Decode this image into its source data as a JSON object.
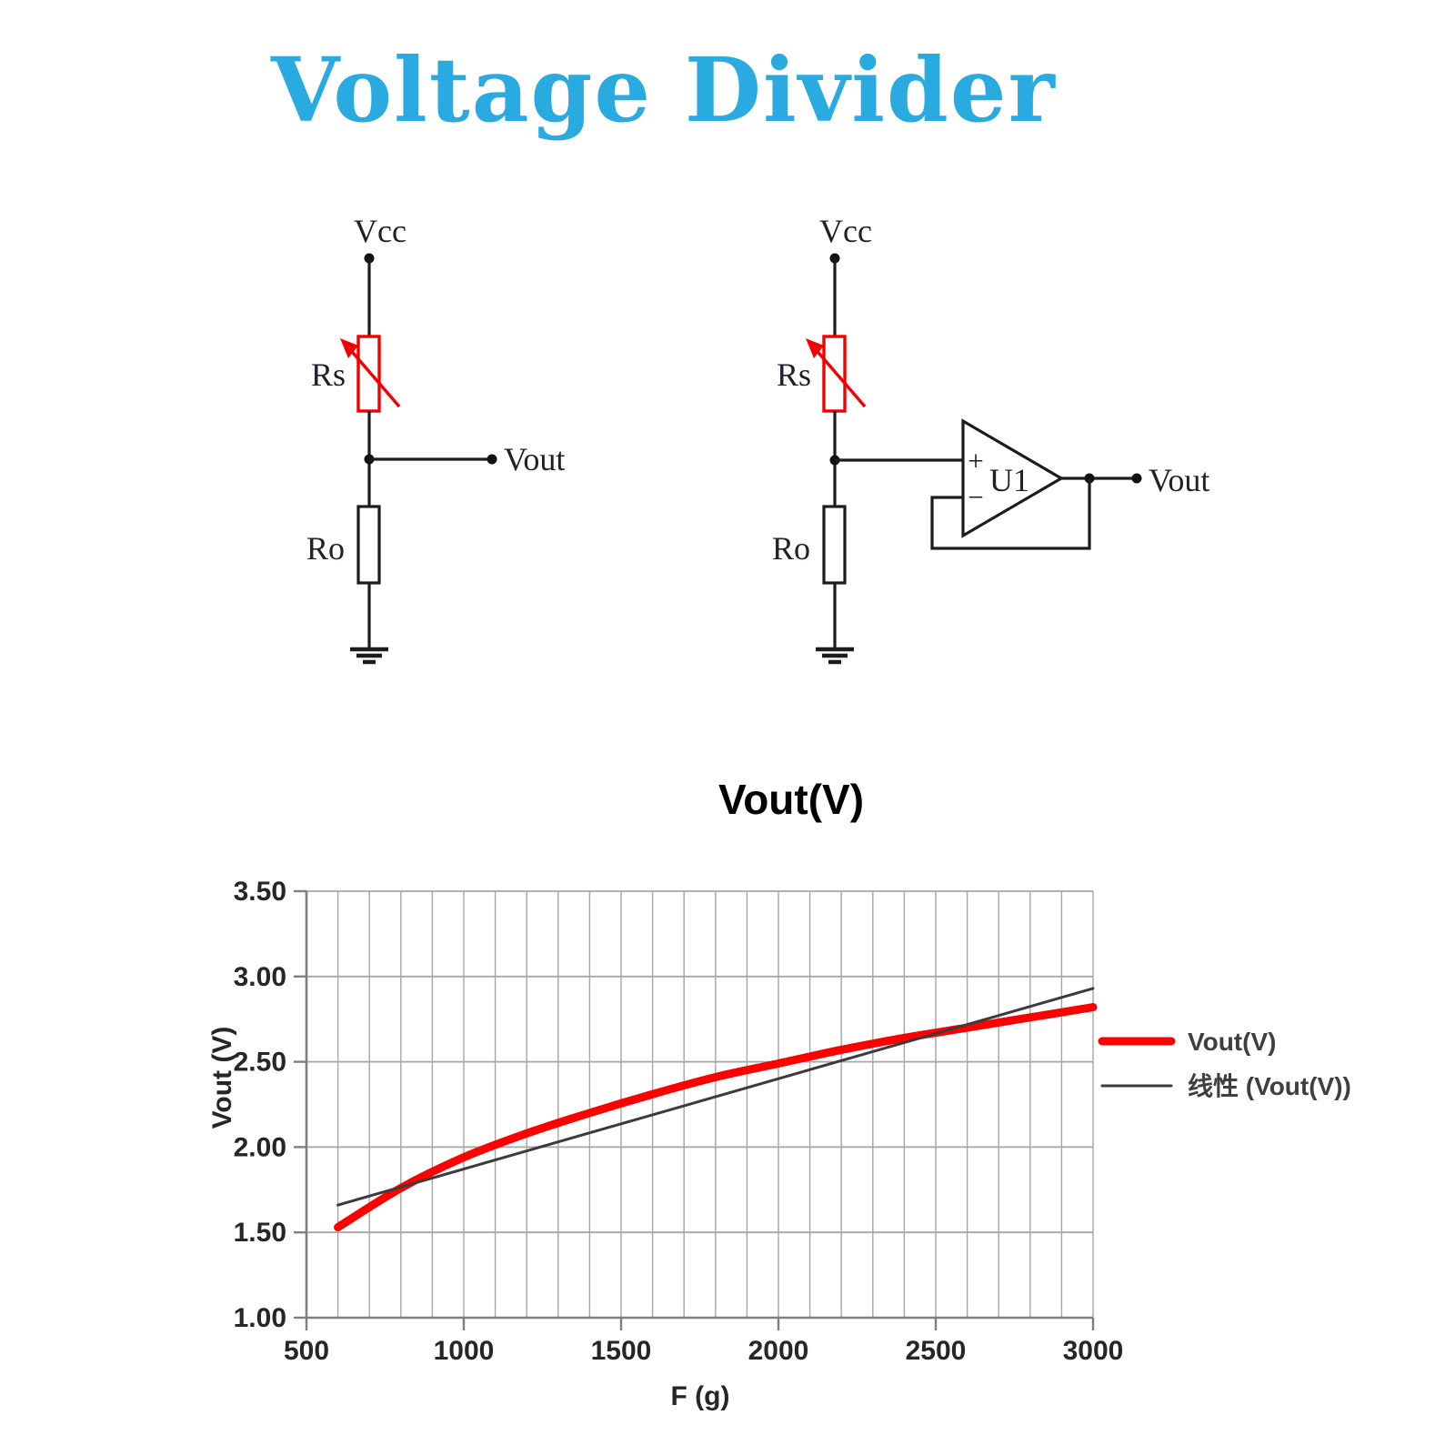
{
  "page": {
    "title": "Voltage Divider",
    "title_color": "#29ABE2",
    "background": "#ffffff"
  },
  "circuit_left": {
    "vcc_label": "Vcc",
    "rs_label": "Rs",
    "vout_label": "Vout",
    "r0_label": "Ro"
  },
  "circuit_right": {
    "vcc_label": "Vcc",
    "rs_label": "Rs",
    "opamp_label": "U1",
    "plus_label": "+",
    "minus_label": "−",
    "vout_label": "Vout",
    "r0_label": "Ro"
  },
  "chart_data": {
    "type": "line",
    "title": "Vout(V)",
    "xlabel": "F (g)",
    "ylabel": "Vout (V)",
    "xlim": [
      500,
      3000
    ],
    "ylim": [
      1.0,
      3.5
    ],
    "x_minor_step": 100,
    "grid": true,
    "grid_color": "#A6A6A6",
    "axis_color": "#7F7F7F",
    "legend_position": "right",
    "x_ticks": [
      {
        "v": 500,
        "label": "500"
      },
      {
        "v": 1000,
        "label": "1000"
      },
      {
        "v": 1500,
        "label": "1500"
      },
      {
        "v": 2000,
        "label": "2000"
      },
      {
        "v": 2500,
        "label": "2500"
      },
      {
        "v": 3000,
        "label": "3000"
      }
    ],
    "y_ticks": [
      {
        "v": 1.0,
        "label": "1.00"
      },
      {
        "v": 1.5,
        "label": "1.50"
      },
      {
        "v": 2.0,
        "label": "2.00"
      },
      {
        "v": 2.5,
        "label": "2.50"
      },
      {
        "v": 3.0,
        "label": "3.00"
      },
      {
        "v": 3.5,
        "label": "3.50"
      }
    ],
    "series": [
      {
        "name": "Vout(V)",
        "color": "#FF0000",
        "stroke_width": 9,
        "smooth": true,
        "x": [
          600,
          800,
          1000,
          1200,
          1400,
          1600,
          1800,
          2000,
          2200,
          2400,
          2600,
          2800,
          3000
        ],
        "y": [
          1.53,
          1.76,
          1.94,
          2.08,
          2.2,
          2.31,
          2.41,
          2.49,
          2.57,
          2.64,
          2.7,
          2.76,
          2.82
        ]
      },
      {
        "name": "线性 (Vout(V))",
        "color": "#3B3B3B",
        "stroke_width": 3,
        "smooth": false,
        "x": [
          600,
          3000
        ],
        "y": [
          1.66,
          2.93
        ]
      }
    ]
  }
}
